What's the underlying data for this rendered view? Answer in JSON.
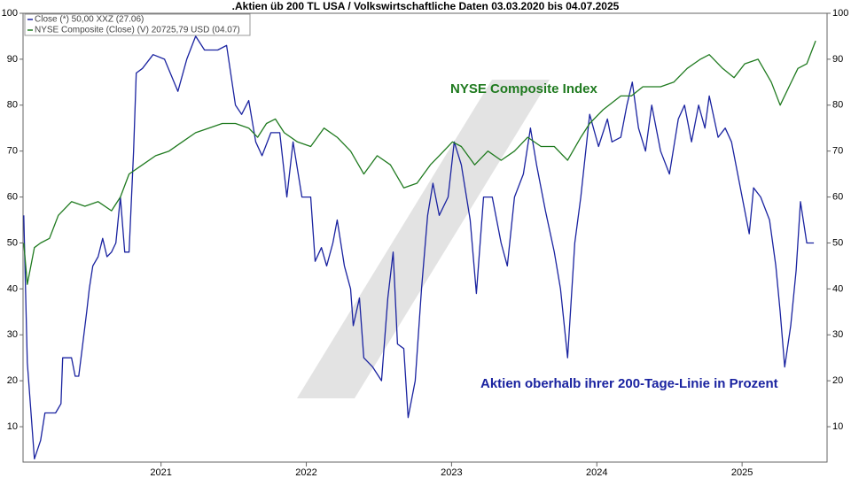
{
  "chart_data": {
    "type": "line",
    "title": ".Aktien üb 200 TL USA / Volkswirtschaftliche Daten 03.03.2020 bis 04.07.2025",
    "annotations": [
      "NYSE Composite Index",
      "Aktien oberhalb ihrer 200-Tage-Linie in Prozent"
    ],
    "xlim": [
      2020.05,
      2025.585
    ],
    "xticks": [
      2021,
      2022,
      2023,
      2024,
      2025
    ],
    "ylim": [
      2.3,
      100
    ],
    "yticks": [
      10,
      20,
      30,
      40,
      50,
      60,
      70,
      80,
      90,
      100
    ],
    "y2lim": [
      2.3,
      100
    ],
    "y2ticks": [
      10,
      20,
      30,
      40,
      50,
      60,
      70,
      80,
      90,
      100
    ],
    "grid": false,
    "legend": "top-left",
    "series": [
      {
        "name": "Close (*) 50,00 XXZ (27.06)",
        "color": "#1a23a0",
        "axis": "y",
        "x": [
          2020.055,
          2020.079,
          2020.128,
          2020.171,
          2020.201,
          2020.274,
          2020.311,
          2020.323,
          2020.384,
          2020.409,
          2020.433,
          2020.457,
          2020.488,
          2020.506,
          2020.53,
          2020.567,
          2020.598,
          2020.628,
          2020.659,
          2020.689,
          2020.72,
          2020.75,
          2020.78,
          2020.811,
          2020.829,
          2020.872,
          2020.945,
          2021.024,
          2021.116,
          2021.177,
          2021.238,
          2021.299,
          2021.39,
          2021.451,
          2021.512,
          2021.555,
          2021.604,
          2021.652,
          2021.695,
          2021.756,
          2021.817,
          2021.866,
          2021.909,
          2021.97,
          2022.03,
          2022.061,
          2022.104,
          2022.14,
          2022.183,
          2022.213,
          2022.262,
          2022.305,
          2022.323,
          2022.366,
          2022.396,
          2022.457,
          2022.518,
          2022.561,
          2022.598,
          2022.628,
          2022.671,
          2022.701,
          2022.75,
          2022.793,
          2022.835,
          2022.872,
          2022.915,
          2022.976,
          2023.018,
          2023.067,
          2023.128,
          2023.171,
          2023.22,
          2023.28,
          2023.341,
          2023.384,
          2023.433,
          2023.494,
          2023.543,
          2023.585,
          2023.646,
          2023.707,
          2023.75,
          2023.799,
          2023.848,
          2023.89,
          2023.951,
          2024.012,
          2024.073,
          2024.104,
          2024.165,
          2024.207,
          2024.244,
          2024.287,
          2024.335,
          2024.378,
          2024.439,
          2024.5,
          2024.561,
          2024.604,
          2024.652,
          2024.701,
          2024.744,
          2024.774,
          2024.835,
          2024.884,
          2024.927,
          2024.988,
          2025.049,
          2025.079,
          2025.128,
          2025.189,
          2025.232,
          2025.262,
          2025.293,
          2025.335,
          2025.372,
          2025.402,
          2025.445,
          2025.494
        ],
        "values": [
          56,
          24,
          3,
          7,
          13,
          13,
          15,
          25,
          25,
          21,
          21,
          27,
          35,
          40,
          45,
          47,
          51,
          47,
          48,
          50,
          60,
          48,
          48,
          70,
          87,
          88,
          91,
          90,
          83,
          90,
          95,
          92,
          92,
          93,
          80,
          78,
          81,
          72,
          69,
          74,
          74,
          60,
          72,
          60,
          60,
          46,
          49,
          45,
          50,
          55,
          45,
          40,
          32,
          38,
          25,
          23,
          20,
          38,
          48,
          28,
          27,
          12,
          20,
          40,
          56,
          63,
          56,
          60,
          72,
          67,
          55,
          39,
          60,
          60,
          50,
          45,
          60,
          65,
          75,
          67,
          57,
          48,
          40,
          25,
          50,
          60,
          78,
          71,
          77,
          72,
          73,
          80,
          85,
          75,
          70,
          80,
          70,
          65,
          77,
          80,
          72,
          80,
          75,
          82,
          73,
          75,
          72,
          62,
          52,
          62,
          60,
          55,
          45,
          35,
          23,
          32,
          44,
          59,
          50,
          50
        ]
      },
      {
        "name": "NYSE Composite (Close) (V) 20725,79 USD (04.07)",
        "color": "#1f7a1f",
        "axis": "y2",
        "x": [
          2020.055,
          2020.079,
          2020.128,
          2020.171,
          2020.232,
          2020.293,
          2020.384,
          2020.476,
          2020.567,
          2020.659,
          2020.72,
          2020.78,
          2020.872,
          2020.963,
          2021.055,
          2021.146,
          2021.238,
          2021.329,
          2021.421,
          2021.512,
          2021.604,
          2021.665,
          2021.726,
          2021.787,
          2021.848,
          2021.939,
          2022.03,
          2022.122,
          2022.213,
          2022.305,
          2022.396,
          2022.488,
          2022.579,
          2022.671,
          2022.762,
          2022.854,
          2022.915,
          2023.006,
          2023.067,
          2023.159,
          2023.25,
          2023.341,
          2023.433,
          2023.524,
          2023.616,
          2023.707,
          2023.799,
          2023.89,
          2023.951,
          2024.043,
          2024.165,
          2024.238,
          2024.317,
          2024.439,
          2024.53,
          2024.622,
          2024.713,
          2024.774,
          2024.866,
          2024.945,
          2025.018,
          2025.11,
          2025.201,
          2025.262,
          2025.323,
          2025.384,
          2025.445,
          2025.506
        ],
        "values": [
          50,
          41,
          49,
          50,
          51,
          56,
          59,
          58,
          59,
          57,
          60,
          65,
          67,
          69,
          70,
          72,
          74,
          75,
          76,
          76,
          75,
          73,
          76,
          77,
          74,
          72,
          71,
          75,
          73,
          70,
          65,
          69,
          67,
          62,
          63,
          67,
          69,
          72,
          71,
          67,
          70,
          68,
          70,
          73,
          71,
          71,
          68,
          73,
          76,
          79,
          82,
          82,
          84,
          84,
          85,
          88,
          90,
          91,
          88,
          86,
          89,
          90,
          85,
          80,
          84,
          88,
          89,
          94
        ]
      }
    ]
  }
}
